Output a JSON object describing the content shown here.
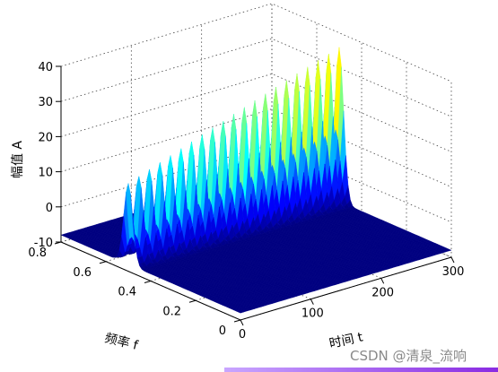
{
  "chart_data": {
    "type": "surface",
    "title": "",
    "xlabel": "时间 t",
    "ylabel": "频率 f",
    "zlabel": "幅值 A",
    "xlim": [
      0,
      300
    ],
    "ylim": [
      0,
      0.8
    ],
    "zlim": [
      -10,
      40
    ],
    "xticks": [
      "0",
      "100",
      "200",
      "300"
    ],
    "yticks": [
      "0",
      "0.2",
      "0.4",
      "0.6",
      "0.8"
    ],
    "zticks": [
      "-10",
      "0",
      "10",
      "20",
      "30",
      "40"
    ],
    "grid": true,
    "colormap": "jet",
    "surface": {
      "ridge_frequency": 0.5,
      "ridge_amplitude_at_t0": 15,
      "ridge_amplitude_at_t300": 37,
      "floor_amplitude": -8,
      "edge_spike_amplitude": 0
    },
    "colors": {
      "floor": "#1a2cff",
      "peak": "#b00000",
      "accent": "#8a2be2"
    }
  },
  "watermark": "CSDN @清泉_流响"
}
